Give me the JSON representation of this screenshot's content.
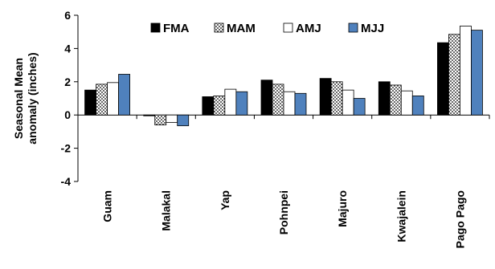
{
  "chart_data": {
    "type": "bar",
    "categories": [
      "Guam",
      "Malakal",
      "Yap",
      "Pohnpei",
      "Majuro",
      "Kwajalein",
      "Pago Pago"
    ],
    "series": [
      {
        "name": "FMA",
        "values": [
          1.5,
          -0.05,
          1.1,
          2.1,
          2.2,
          2.0,
          4.35
        ],
        "color": "#000000",
        "pattern": "solid"
      },
      {
        "name": "MAM",
        "values": [
          1.85,
          -0.6,
          1.15,
          1.85,
          2.0,
          1.8,
          4.85
        ],
        "color": "#ffffff",
        "pattern": "dots"
      },
      {
        "name": "AMJ",
        "values": [
          1.95,
          -0.45,
          1.55,
          1.4,
          1.5,
          1.45,
          5.35
        ],
        "color": "#ffffff",
        "pattern": "hollow"
      },
      {
        "name": "MJJ",
        "values": [
          2.45,
          -0.65,
          1.4,
          1.3,
          1.0,
          1.15,
          5.1
        ],
        "color": "#4f81bd",
        "pattern": "solid"
      }
    ],
    "ylabel_lines": [
      "Seasonal Mean",
      "anomaly (inches)"
    ],
    "xlabel": "",
    "ylim": [
      -4,
      6
    ],
    "yticks": [
      -4,
      -2,
      0,
      2,
      4,
      6
    ],
    "grid": false,
    "legend_position": "top"
  }
}
